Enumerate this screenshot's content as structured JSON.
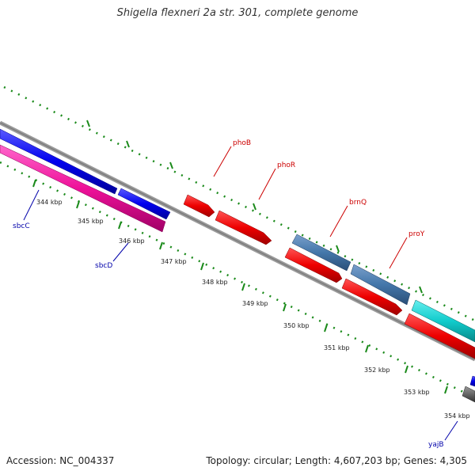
{
  "title": "Shigella flexneri 2a str. 301, complete genome",
  "accession": "Accession: NC_004337",
  "summary": "Topology: circular; Length: 4,607,203 bp; Genes: 4,305",
  "colors": {
    "backbone": "#888888",
    "tick_green": "#1a8a1a",
    "label_red": "#cc0000",
    "label_blue": "#0000aa"
  },
  "ticks": [
    {
      "label": "344 kbp"
    },
    {
      "label": "345 kbp"
    },
    {
      "label": "346 kbp"
    },
    {
      "label": "347 kbp"
    },
    {
      "label": "348 kbp"
    },
    {
      "label": "349 kbp"
    },
    {
      "label": "350 kbp"
    },
    {
      "label": "351 kbp"
    },
    {
      "label": "352 kbp"
    },
    {
      "label": "353 kbp"
    },
    {
      "label": "354 kbp"
    }
  ],
  "genes": [
    {
      "name": "sbcC",
      "color": "#0000ee",
      "label_color": "#0000aa"
    },
    {
      "name": "sbcD",
      "color": "#ee1199",
      "label_color": "#0000aa"
    },
    {
      "name": "phoB",
      "color": "#ee0000",
      "label_color": "#cc0000"
    },
    {
      "name": "phoR",
      "color": "#ee0000",
      "label_color": "#cc0000"
    },
    {
      "name": "brnQ",
      "color": "#4477aa",
      "label_color": "#cc0000"
    },
    {
      "name": "proY",
      "color": "#ee0000",
      "label_color": "#cc0000"
    },
    {
      "name": "yajB",
      "color": "#0000ee",
      "label_color": "#0000aa"
    }
  ]
}
